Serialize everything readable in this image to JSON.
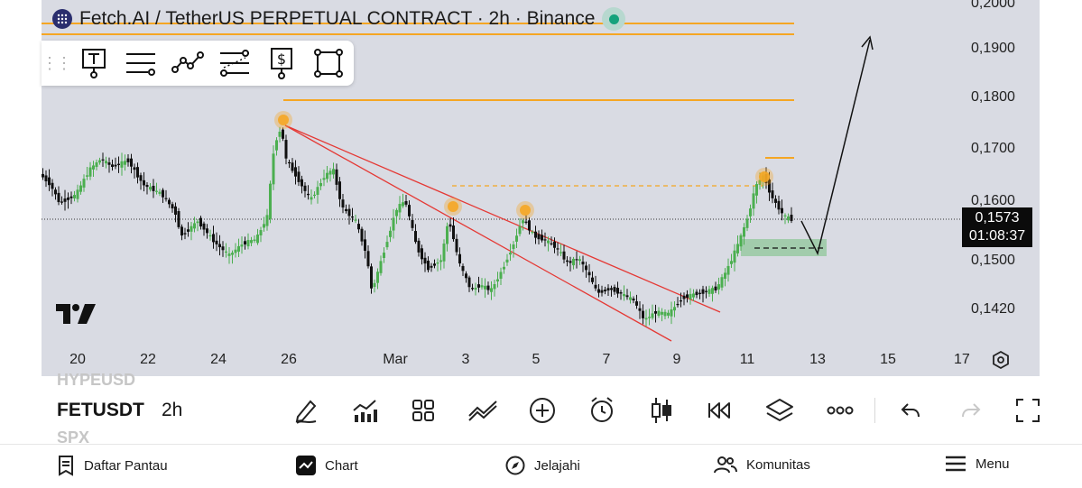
{
  "chart": {
    "title": "Fetch.AI / TetherUS PERPETUAL CONTRACT · 2h · Binance",
    "price_labels": [
      "0,2000",
      "0,1900",
      "0,1800",
      "0,1700",
      "0,1600",
      "0,1500",
      "0,1420"
    ],
    "time_labels": [
      "20",
      "22",
      "24",
      "26",
      "Mar",
      "3",
      "5",
      "7",
      "9",
      "11",
      "13",
      "15",
      "17"
    ],
    "current_price": "0,1573",
    "countdown": "01:08:37",
    "colors": {
      "up": "#4caf50",
      "down": "#111111",
      "level": "#f5a623",
      "trend": "#e53935",
      "zone": "#8fc79a"
    }
  },
  "drawing_toolbar": {
    "tools": [
      "text-tool-icon",
      "horizontal-lines-icon",
      "trend-path-icon",
      "fib-levels-icon",
      "price-label-icon",
      "rectangle-icon"
    ]
  },
  "symbol_bar": {
    "prev_symbol": "HYPEUSD",
    "symbol": "FETUSDT",
    "interval": "2h",
    "next_symbol": "SPX"
  },
  "bottom_nav": {
    "items": [
      {
        "label": "Daftar Pantau"
      },
      {
        "label": "Chart"
      },
      {
        "label": "Jelajahi"
      },
      {
        "label": "Komunitas"
      },
      {
        "label": "Menu"
      }
    ]
  }
}
